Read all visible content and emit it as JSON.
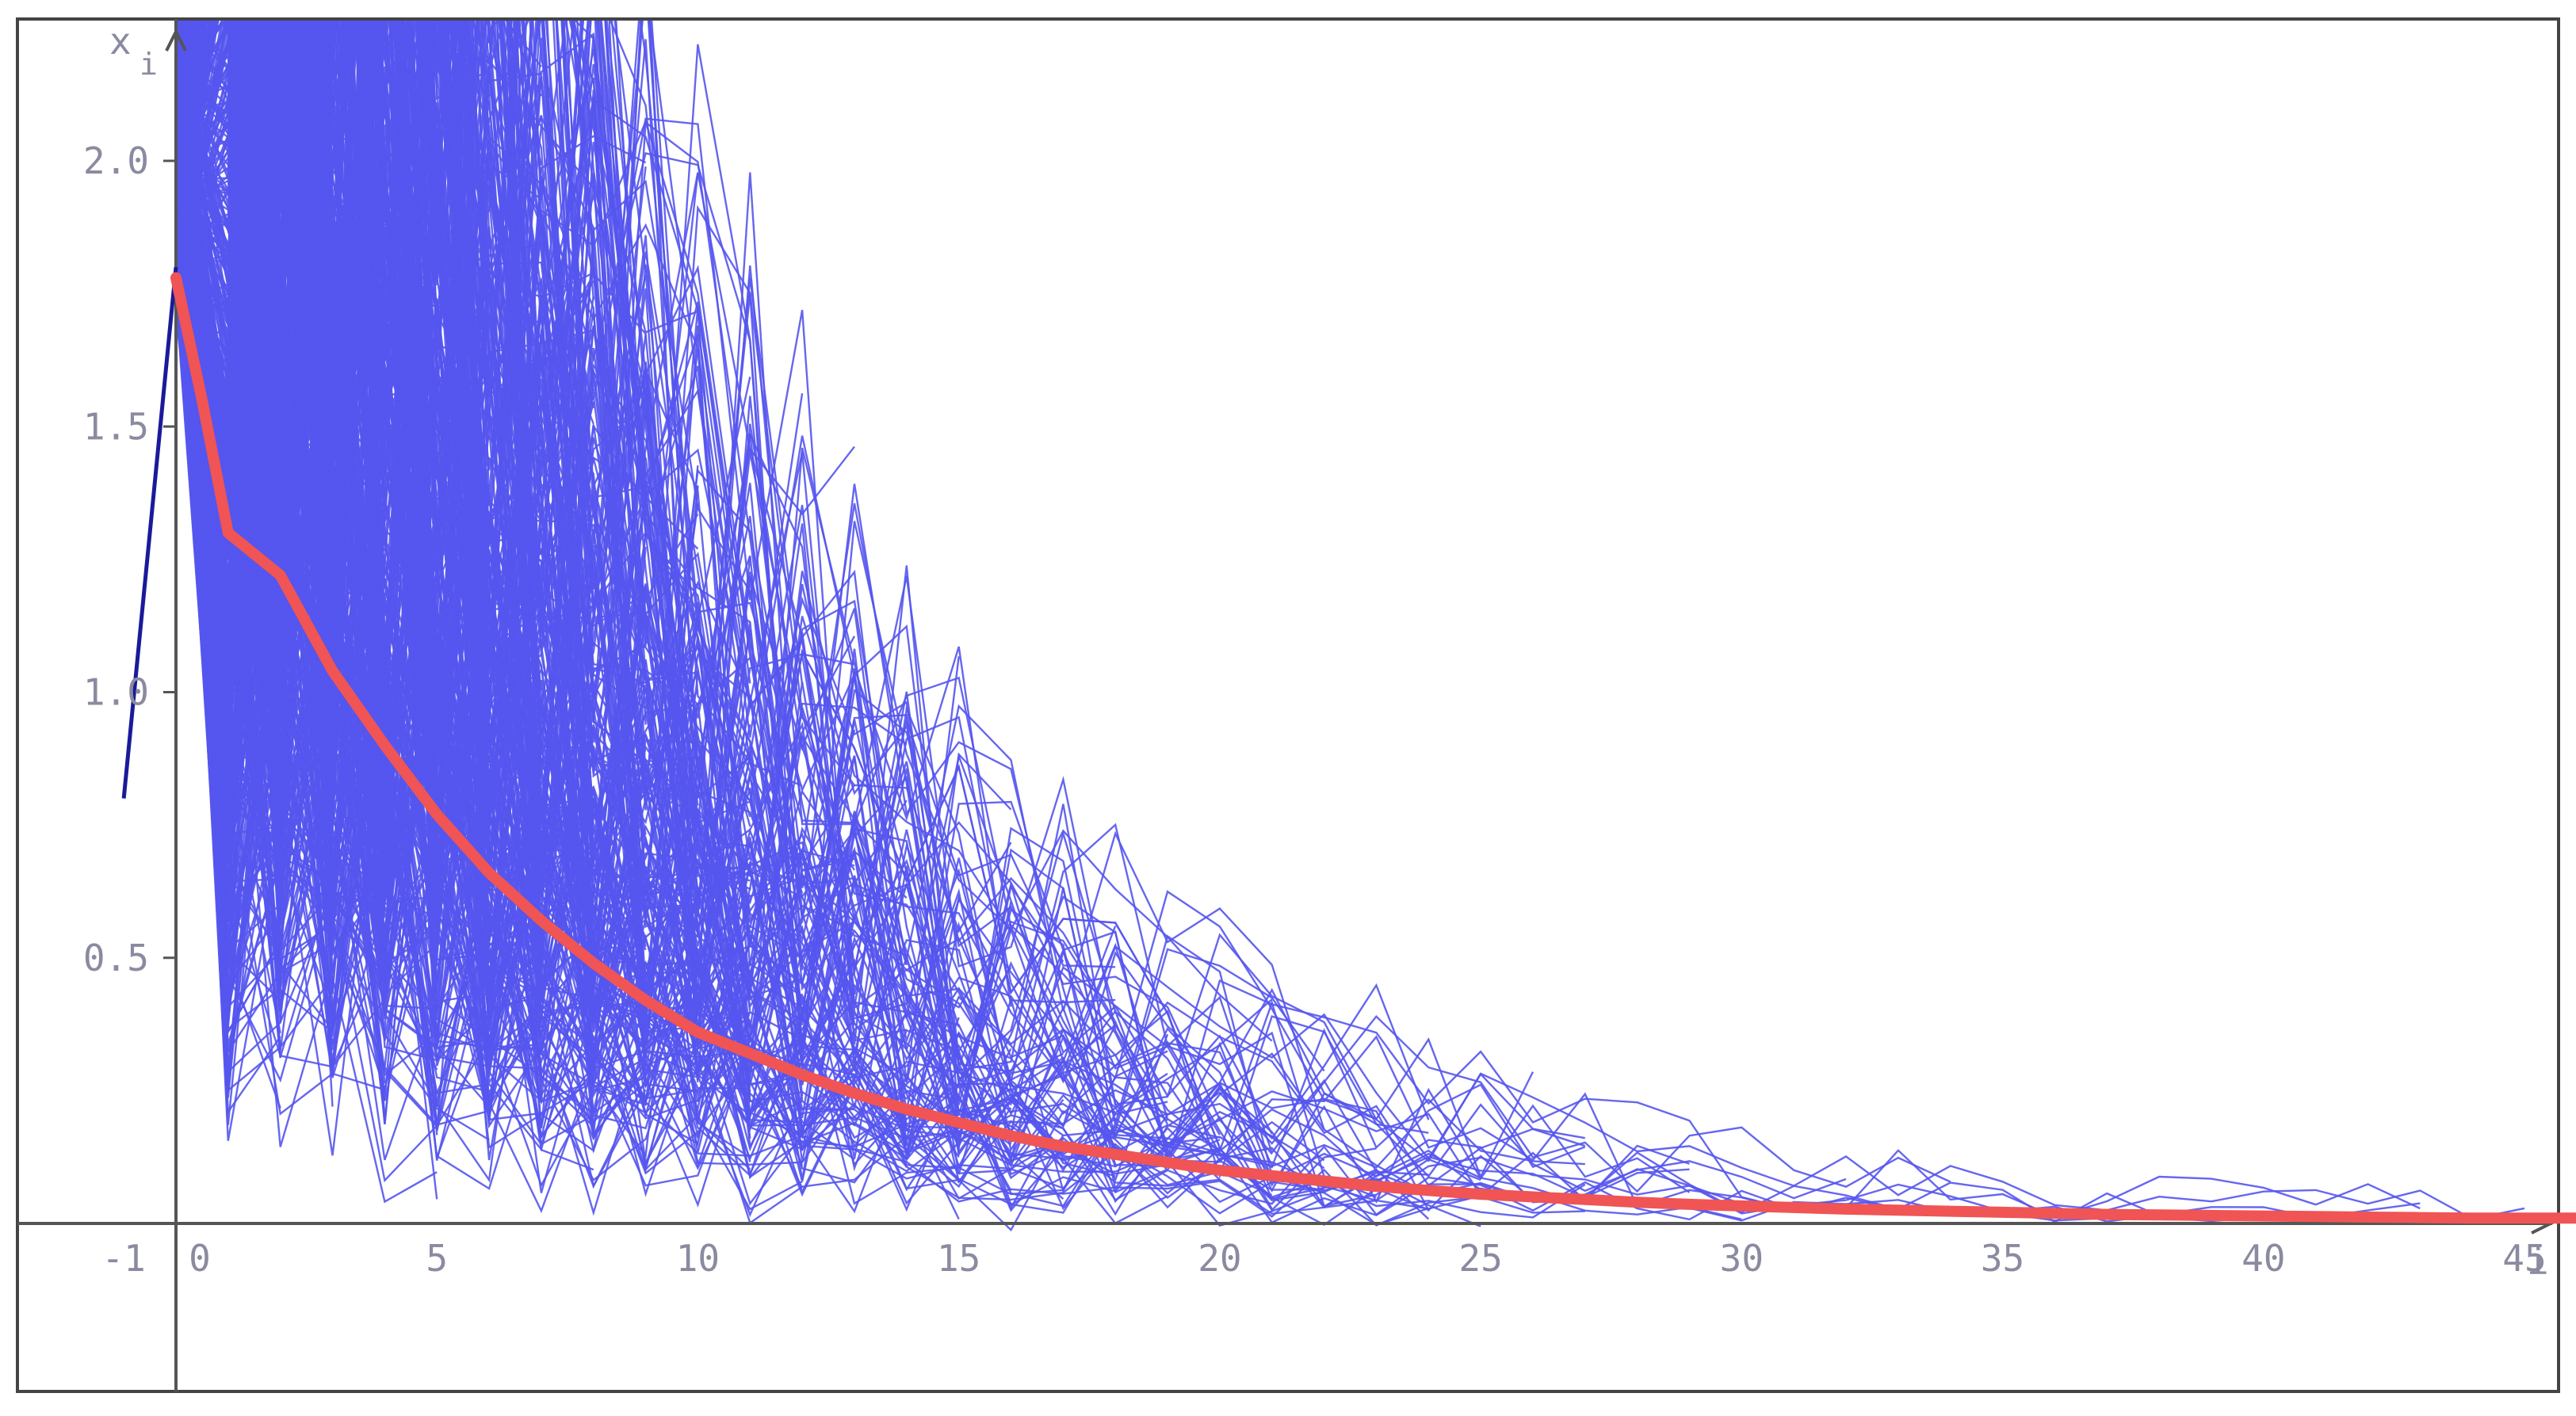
{
  "chart_data": {
    "type": "line",
    "title": "",
    "xlabel": "i",
    "ylabel": "x_i",
    "ylabel_main": "x",
    "ylabel_sub": "i",
    "xlim": [
      -1.9,
      46.6
    ],
    "ylim": [
      -0.31,
      2.27
    ],
    "x_ticks": [
      -1,
      0,
      5,
      10,
      15,
      20,
      25,
      30,
      35,
      40,
      45
    ],
    "y_ticks": [
      0.5,
      1.0,
      1.5,
      2.0
    ],
    "x_tick_labels": [
      "-1",
      "0",
      "5",
      "10",
      "15",
      "20",
      "25",
      "30",
      "35",
      "40",
      "45"
    ],
    "y_tick_labels": [
      "0.5",
      "1.0",
      "1.5",
      "2.0"
    ],
    "grid": false,
    "legend": "none",
    "colors": {
      "trajectories": "#5555ee",
      "mean": "#f05454",
      "initial": "#1a1a9a",
      "axis": "#555555",
      "frame": "#444444",
      "ticks": "#8a8aa0"
    },
    "series": [
      {
        "values_x": [
          -1,
          0
        ],
        "values_y": [
          0.8,
          1.8
        ]
      },
      {
        "values_x": [
          0,
          0.5,
          1,
          2,
          3,
          4,
          5,
          6,
          7,
          8,
          9,
          10,
          11,
          12,
          13,
          14,
          15,
          16,
          17,
          18,
          19,
          20,
          21,
          22,
          23,
          24,
          25,
          26,
          27,
          28,
          29,
          30,
          31,
          32,
          33,
          34,
          35,
          36,
          37,
          38,
          39,
          40,
          41,
          42,
          43,
          44,
          45,
          46.5
        ],
        "values_y": [
          1.78,
          1.55,
          1.3,
          1.22,
          1.04,
          0.9,
          0.77,
          0.66,
          0.57,
          0.49,
          0.42,
          0.36,
          0.32,
          0.28,
          0.245,
          0.215,
          0.19,
          0.165,
          0.145,
          0.13,
          0.115,
          0.1,
          0.09,
          0.08,
          0.07,
          0.062,
          0.055,
          0.05,
          0.045,
          0.04,
          0.036,
          0.033,
          0.03,
          0.027,
          0.025,
          0.023,
          0.021,
          0.019,
          0.017,
          0.016,
          0.015,
          0.014,
          0.013,
          0.012,
          0.011,
          0.01,
          0.01,
          0.01
        ]
      }
    ],
    "trajectory_count": 1000,
    "trajectory_note_seed": 12345
  }
}
